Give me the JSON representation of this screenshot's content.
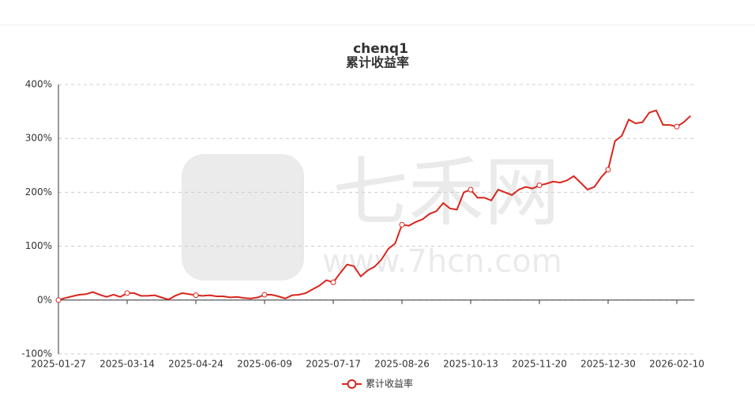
{
  "chart_data": {
    "type": "line",
    "title": "chenq1",
    "subtitle": "累计收益率",
    "watermark": {
      "brand": "七禾网",
      "url": "www.7hcn.com"
    },
    "categories": [
      "2025-01-27",
      null,
      null,
      null,
      null,
      null,
      null,
      null,
      null,
      null,
      "2025-03-14",
      null,
      null,
      null,
      null,
      null,
      null,
      null,
      null,
      null,
      "2025-04-24",
      null,
      null,
      null,
      null,
      null,
      null,
      null,
      null,
      null,
      "2025-06-09",
      null,
      null,
      null,
      null,
      null,
      null,
      null,
      null,
      null,
      "2025-07-17",
      null,
      null,
      null,
      null,
      null,
      null,
      null,
      null,
      null,
      "2025-08-26",
      null,
      null,
      null,
      null,
      null,
      null,
      null,
      null,
      null,
      "2025-10-13",
      null,
      null,
      null,
      null,
      null,
      null,
      null,
      null,
      null,
      "2025-11-20",
      null,
      null,
      null,
      null,
      null,
      null,
      null,
      null,
      null,
      "2025-12-30",
      null,
      null,
      null,
      null,
      null,
      null,
      null,
      null,
      null,
      "2026-02-10",
      null,
      null
    ],
    "series": [
      {
        "name": "累计收益率",
        "color": "#d9261c",
        "values": [
          0,
          4,
          7,
          10,
          11,
          15,
          10,
          6,
          10,
          6,
          13,
          13,
          8,
          8,
          9,
          5,
          1,
          8,
          13,
          11,
          9,
          8,
          9,
          7,
          7,
          5,
          6,
          4,
          3,
          5,
          10,
          10,
          7,
          3,
          9,
          10,
          13,
          20,
          27,
          37,
          33,
          50,
          66,
          63,
          44,
          55,
          62,
          75,
          95,
          105,
          140,
          138,
          145,
          150,
          160,
          165,
          180,
          170,
          168,
          200,
          205,
          190,
          190,
          185,
          205,
          200,
          195,
          205,
          210,
          207,
          213,
          216,
          220,
          218,
          222,
          230,
          218,
          205,
          210,
          228,
          242,
          295,
          305,
          335,
          328,
          330,
          348,
          352,
          325,
          325,
          322,
          330,
          342
        ]
      }
    ],
    "ylim": [
      -100,
      400
    ],
    "yticks": [
      {
        "value": -100,
        "label": "-100%"
      },
      {
        "value": 0,
        "label": "0%"
      },
      {
        "value": 100,
        "label": "100%"
      },
      {
        "value": 200,
        "label": "200%"
      },
      {
        "value": 300,
        "label": "300%"
      },
      {
        "value": 400,
        "label": "400%"
      }
    ],
    "grid": true,
    "legend": "bottom"
  }
}
